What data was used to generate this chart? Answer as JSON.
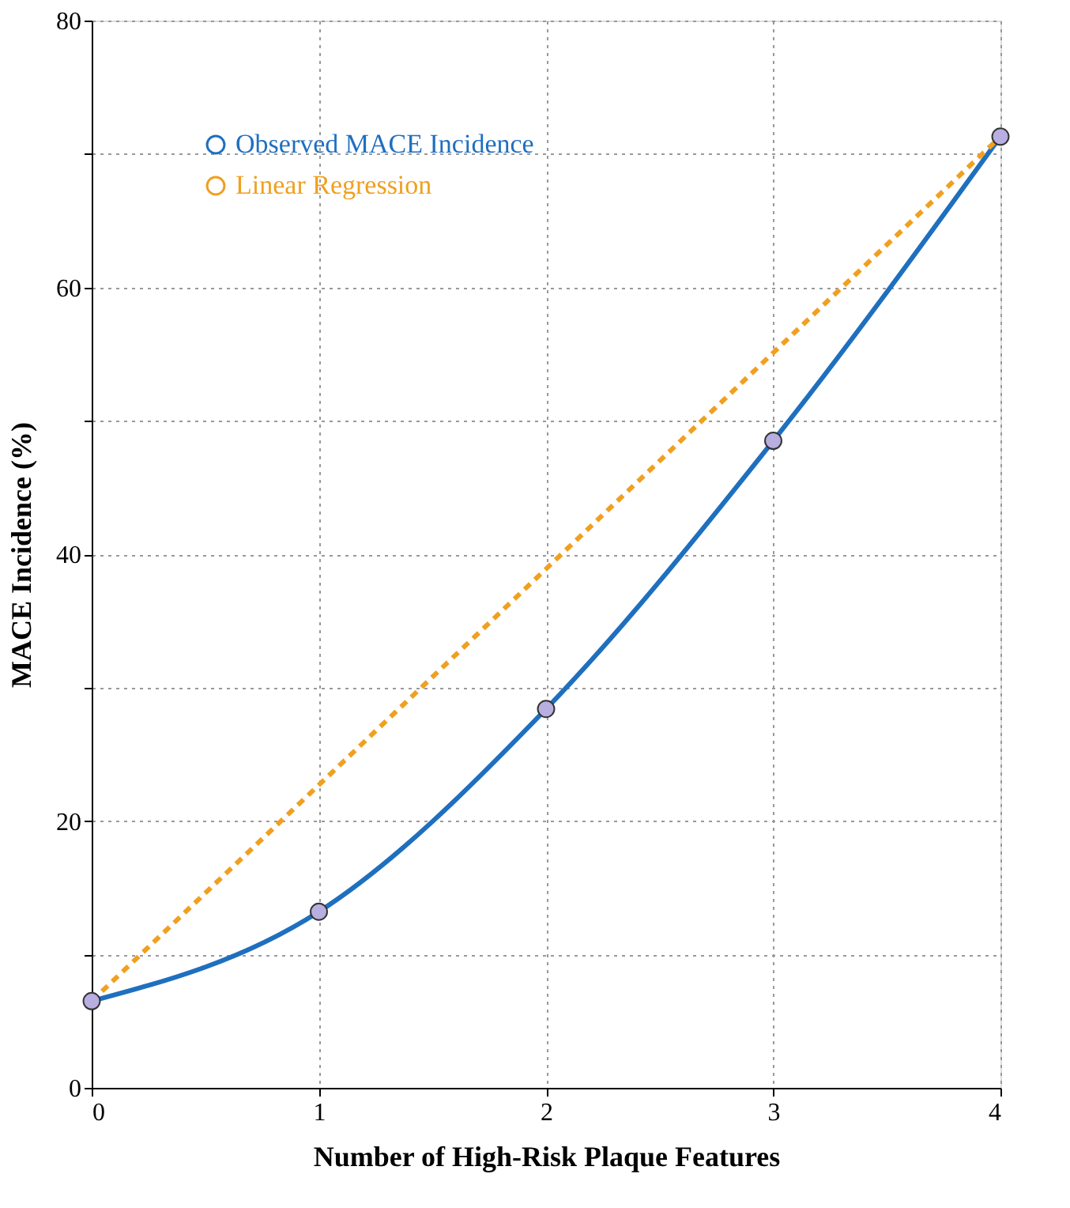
{
  "chart_data": {
    "type": "line",
    "xlabel": "Number of High-Risk Plaque Features",
    "ylabel": "MACE Incidence (%)",
    "x": [
      0,
      1,
      2,
      3,
      4
    ],
    "series": [
      {
        "name": "Observed MACE Incidence",
        "color": "#1f6fbf",
        "values": [
          6.5,
          13.2,
          28.4,
          48.5,
          71.3
        ],
        "marker": "circle",
        "line_style": "solid"
      },
      {
        "name": "Linear Regression",
        "color": "#f0a020",
        "values": [
          6.5,
          22.7,
          38.9,
          55.1,
          71.3
        ],
        "marker": "none",
        "line_style": "dashed"
      }
    ],
    "xlim": [
      0,
      4
    ],
    "xticks": [
      0,
      1,
      2,
      3,
      4
    ],
    "ylim": [
      0,
      80
    ],
    "yticks": [
      0,
      {
        "value": 10,
        "label": null
      },
      20,
      {
        "value": 30,
        "label": null
      },
      40,
      {
        "value": 50,
        "label": null
      },
      60,
      {
        "value": 70,
        "label": null
      },
      80
    ],
    "grid": true,
    "legend": "top left"
  }
}
